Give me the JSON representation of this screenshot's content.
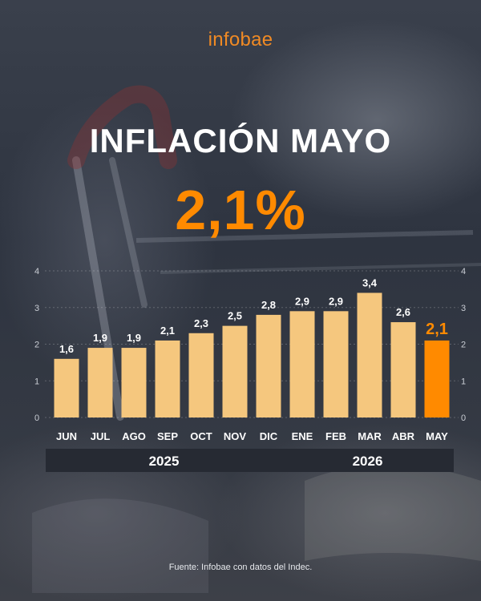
{
  "header": {
    "brand": "infobae",
    "title": "INFLACIÓN MAYO",
    "headline_value": "2,1%"
  },
  "source": "Fuente: Infobae con datos del Indec.",
  "colors": {
    "brand": "#f08a24",
    "bar": "#f5c77e",
    "highlight": "#ff8a00",
    "year_band": "#262a33"
  },
  "chart_data": {
    "type": "bar",
    "categories": [
      "JUN",
      "JUL",
      "AGO",
      "SEP",
      "OCT",
      "NOV",
      "DIC",
      "ENE",
      "FEB",
      "MAR",
      "ABR",
      "MAY"
    ],
    "values": [
      1.6,
      1.9,
      1.9,
      2.1,
      2.3,
      2.5,
      2.8,
      2.9,
      2.9,
      3.4,
      2.6,
      2.1
    ],
    "value_labels": [
      "1,6",
      "1,9",
      "1,9",
      "2,1",
      "2,3",
      "2,5",
      "2,8",
      "2,9",
      "2,9",
      "3,4",
      "2,6",
      "2,1"
    ],
    "highlight_index": 11,
    "ylim": [
      0,
      4
    ],
    "yticks": [
      "0",
      "1",
      "2",
      "3",
      "4"
    ],
    "axis_sides": [
      "left",
      "right"
    ],
    "grid": true,
    "year_groups": [
      {
        "label": "2025",
        "from": 0,
        "to": 6
      },
      {
        "label": "2026",
        "from": 7,
        "to": 11
      }
    ]
  }
}
